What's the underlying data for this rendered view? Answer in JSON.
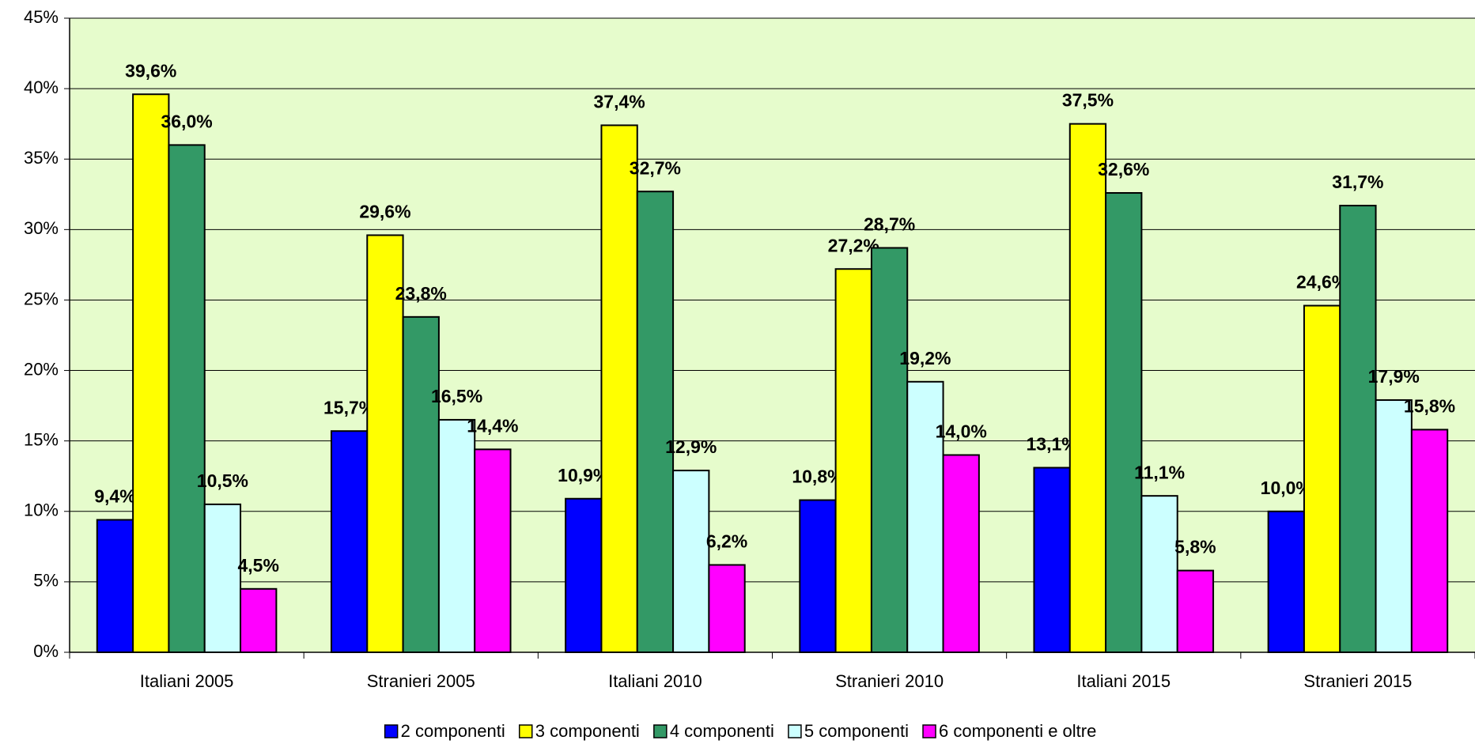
{
  "chart_data": {
    "type": "bar",
    "categories": [
      "Italiani 2005",
      "Stranieri 2005",
      "Italiani 2010",
      "Stranieri 2010",
      "Italiani 2015",
      "Stranieri 2015"
    ],
    "series": [
      {
        "name": "2 componenti",
        "color": "#0000ff",
        "values": [
          9.4,
          15.7,
          10.9,
          10.8,
          13.1,
          10.0
        ],
        "value_labels": [
          "9,4%",
          "15,7%",
          "10,9%",
          "10,8%",
          "13,1%",
          "10,0%"
        ]
      },
      {
        "name": "3 componenti",
        "color": "#ffff00",
        "values": [
          39.6,
          29.6,
          37.4,
          27.2,
          37.5,
          24.6
        ],
        "value_labels": [
          "39,6%",
          "29,6%",
          "37,4%",
          "27,2%",
          "37,5%",
          "24,6%"
        ]
      },
      {
        "name": "4 componenti",
        "color": "#339966",
        "values": [
          36.0,
          23.8,
          32.7,
          28.7,
          32.6,
          31.7
        ],
        "value_labels": [
          "36,0%",
          "23,8%",
          "32,7%",
          "28,7%",
          "32,6%",
          "31,7%"
        ]
      },
      {
        "name": "5 componenti",
        "color": "#ccffff",
        "values": [
          10.5,
          16.5,
          12.9,
          19.2,
          11.1,
          17.9
        ],
        "value_labels": [
          "10,5%",
          "16,5%",
          "12,9%",
          "19,2%",
          "11,1%",
          "17,9%"
        ]
      },
      {
        "name": "6 componenti e oltre",
        "color": "#ff00ff",
        "values": [
          4.5,
          14.4,
          6.2,
          14.0,
          5.8,
          15.8
        ],
        "value_labels": [
          "4,5%",
          "14,4%",
          "6,2%",
          "14,0%",
          "5,8%",
          "15,8%"
        ]
      }
    ],
    "ylim": [
      0,
      45
    ],
    "yticks": [
      {
        "value": 0,
        "label": "0%"
      },
      {
        "value": 5,
        "label": "5%"
      },
      {
        "value": 10,
        "label": "10%"
      },
      {
        "value": 15,
        "label": "15%"
      },
      {
        "value": 20,
        "label": "20%"
      },
      {
        "value": 25,
        "label": "25%"
      },
      {
        "value": 30,
        "label": "30%"
      },
      {
        "value": 35,
        "label": "35%"
      },
      {
        "value": 40,
        "label": "40%"
      },
      {
        "value": 45,
        "label": "45%"
      }
    ],
    "grid": true,
    "plot_background": "#e6fccc",
    "legend": "bottom"
  }
}
